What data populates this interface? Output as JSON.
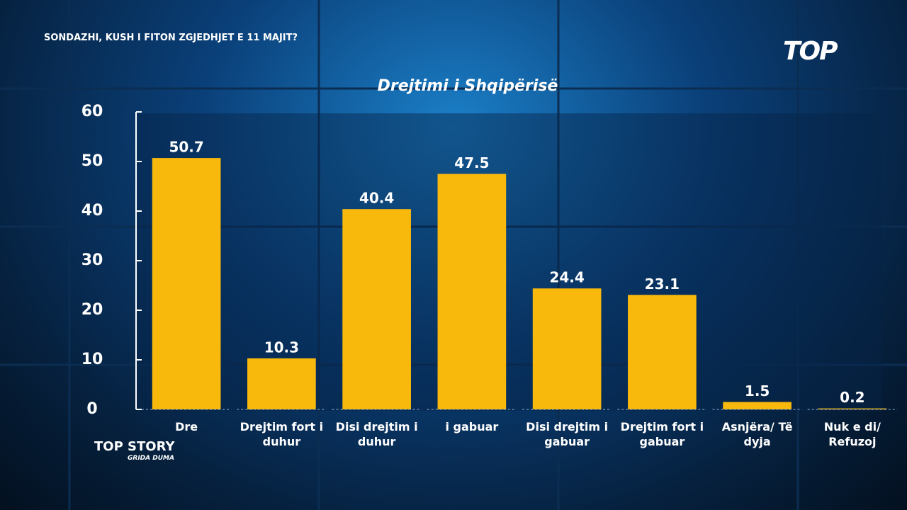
{
  "headline": "SONDAZHI, KUSH I FITON ZGJEDHJET E 11 MAJIT?",
  "logo": "TOP",
  "show_title": "TOP STORY",
  "show_host": "GRIDA DUMA",
  "chart_data": {
    "type": "bar",
    "title": "Drejtimi i Shqipërisë",
    "categories": [
      "Dre",
      "Drejtim fort i duhur",
      "Disi drejtim i duhur",
      "i gabuar",
      "Disi drejtim i gabuar",
      "Drejtim fort i gabuar",
      "Asnjëra/ Të dyja",
      "Nuk e di/ Refuzoj"
    ],
    "values": [
      50.7,
      10.3,
      40.4,
      47.5,
      24.4,
      23.1,
      1.5,
      0.2
    ],
    "color": "#f9b80c",
    "ylim": [
      0,
      60
    ],
    "yticks": [
      0,
      10,
      20,
      30,
      40,
      50,
      60
    ]
  }
}
